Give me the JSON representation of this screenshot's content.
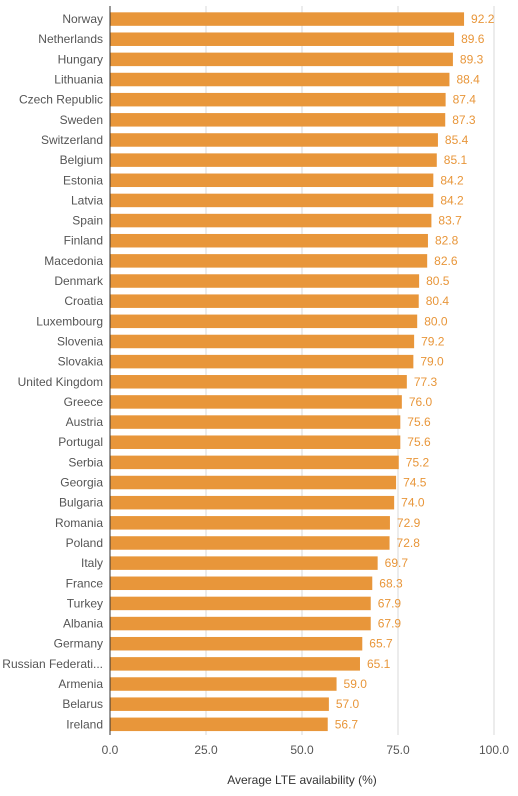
{
  "chart_data": {
    "type": "bar",
    "orientation": "horizontal",
    "categories": [
      "Norway",
      "Netherlands",
      "Hungary",
      "Lithuania",
      "Czech Republic",
      "Sweden",
      "Switzerland",
      "Belgium",
      "Estonia",
      "Latvia",
      "Spain",
      "Finland",
      "Macedonia",
      "Denmark",
      "Croatia",
      "Luxembourg",
      "Slovenia",
      "Slovakia",
      "United Kingdom",
      "Greece",
      "Austria",
      "Portugal",
      "Serbia",
      "Georgia",
      "Bulgaria",
      "Romania",
      "Poland",
      "Italy",
      "France",
      "Turkey",
      "Albania",
      "Germany",
      "Russian Federati...",
      "Armenia",
      "Belarus",
      "Ireland"
    ],
    "values": [
      92.2,
      89.6,
      89.3,
      88.4,
      87.4,
      87.3,
      85.4,
      85.1,
      84.2,
      84.2,
      83.7,
      82.8,
      82.6,
      80.5,
      80.4,
      80.0,
      79.2,
      79.0,
      77.3,
      76.0,
      75.6,
      75.6,
      75.2,
      74.5,
      74.0,
      72.9,
      72.8,
      69.7,
      68.3,
      67.9,
      67.9,
      65.7,
      65.1,
      59.0,
      57.0,
      56.7
    ],
    "value_labels": [
      "92.2",
      "89.6",
      "89.3",
      "88.4",
      "87.4",
      "87.3",
      "85.4",
      "85.1",
      "84.2",
      "84.2",
      "83.7",
      "82.8",
      "82.6",
      "80.5",
      "80.4",
      "80.0",
      "79.2",
      "79.0",
      "77.3",
      "76.0",
      "75.6",
      "75.6",
      "75.2",
      "74.5",
      "74.0",
      "72.9",
      "72.8",
      "69.7",
      "68.3",
      "67.9",
      "67.9",
      "65.7",
      "65.1",
      "59.0",
      "57.0",
      "56.7"
    ],
    "xlabel": "Average LTE availability (%)",
    "xlim": [
      0,
      100
    ],
    "xticks": [
      0,
      25,
      50,
      75,
      100
    ],
    "xtick_labels": [
      "0.0",
      "25.0",
      "50.0",
      "75.0",
      "100.0"
    ],
    "grid": true,
    "bar_color": "#E8963A",
    "value_label_color": "#E8963A"
  }
}
